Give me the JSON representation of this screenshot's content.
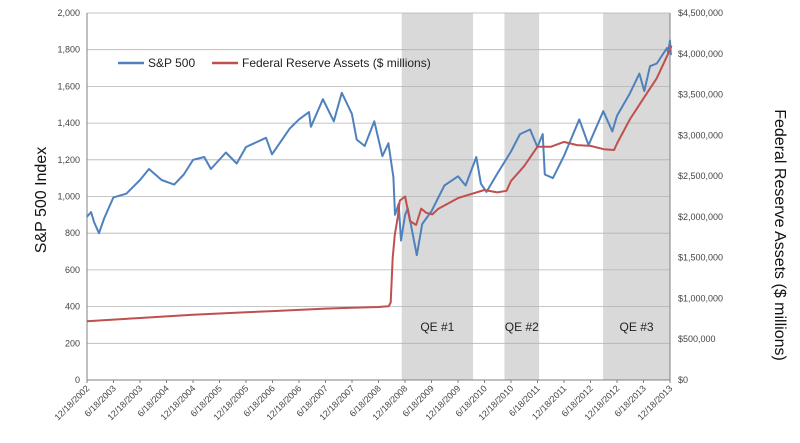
{
  "chart_data": {
    "type": "line",
    "yaxis_left": {
      "label": "S&P 500 Index",
      "range": [
        0,
        2000
      ],
      "ticks": [
        "0",
        "200",
        "400",
        "600",
        "800",
        "1,000",
        "1,200",
        "1,400",
        "1,600",
        "1,800",
        "2,000"
      ]
    },
    "yaxis_right": {
      "label": "Federal Reserve Assets ($ millions)",
      "range": [
        0,
        4500000
      ],
      "ticks": [
        "$0",
        "$500,000",
        "$1,000,000",
        "$1,500,000",
        "$2,000,000",
        "$2,500,000",
        "$3,000,000",
        "$3,500,000",
        "$4,000,000",
        "$4,500,000"
      ]
    },
    "xaxis": {
      "range": [
        "2002-12-18",
        "2013-12-18"
      ],
      "tick_labels": [
        "12/18/2002",
        "6/18/2003",
        "12/18/2003",
        "6/18/2004",
        "12/18/2004",
        "6/18/2005",
        "12/18/2005",
        "6/18/2006",
        "12/18/2006",
        "6/18/2007",
        "12/18/2007",
        "6/18/2008",
        "12/18/2008",
        "6/18/2009",
        "12/18/2009",
        "6/18/2010",
        "12/18/2010",
        "6/18/2011",
        "12/18/2011",
        "6/18/2012",
        "12/18/2012",
        "6/18/2013",
        "12/18/2013"
      ]
    },
    "grid": true,
    "legend_position": "top-left",
    "shaded_periods": [
      {
        "label": "QE #1",
        "start": "2008-11-25",
        "end": "2010-03-31"
      },
      {
        "label": "QE #2",
        "start": "2010-11-03",
        "end": "2011-06-30"
      },
      {
        "label": "QE #3",
        "start": "2012-09-13",
        "end": "2013-12-31"
      }
    ],
    "series": [
      {
        "name": "S&P 500",
        "color": "#4F81BD",
        "axis": "left",
        "points": [
          [
            "2002-12-18",
            890
          ],
          [
            "2003-01-15",
            915
          ],
          [
            "2003-02-05",
            860
          ],
          [
            "2003-03-11",
            800
          ],
          [
            "2003-04-15",
            880
          ],
          [
            "2003-06-18",
            995
          ],
          [
            "2003-09-15",
            1015
          ],
          [
            "2003-12-18",
            1090
          ],
          [
            "2004-02-18",
            1150
          ],
          [
            "2004-05-15",
            1090
          ],
          [
            "2004-08-10",
            1065
          ],
          [
            "2004-10-15",
            1120
          ],
          [
            "2004-12-18",
            1200
          ],
          [
            "2005-03-05",
            1215
          ],
          [
            "2005-04-20",
            1150
          ],
          [
            "2005-08-01",
            1240
          ],
          [
            "2005-10-15",
            1180
          ],
          [
            "2005-12-18",
            1270
          ],
          [
            "2006-05-05",
            1320
          ],
          [
            "2006-06-15",
            1230
          ],
          [
            "2006-10-15",
            1370
          ],
          [
            "2006-12-18",
            1420
          ],
          [
            "2007-02-25",
            1460
          ],
          [
            "2007-03-10",
            1380
          ],
          [
            "2007-06-01",
            1530
          ],
          [
            "2007-08-15",
            1410
          ],
          [
            "2007-10-09",
            1565
          ],
          [
            "2007-12-18",
            1450
          ],
          [
            "2008-01-20",
            1310
          ],
          [
            "2008-03-15",
            1275
          ],
          [
            "2008-05-20",
            1410
          ],
          [
            "2008-07-15",
            1220
          ],
          [
            "2008-08-25",
            1290
          ],
          [
            "2008-09-29",
            1105
          ],
          [
            "2008-10-10",
            900
          ],
          [
            "2008-11-04",
            960
          ],
          [
            "2008-11-20",
            760
          ],
          [
            "2008-12-18",
            900
          ],
          [
            "2009-01-06",
            935
          ],
          [
            "2009-03-09",
            680
          ],
          [
            "2009-04-15",
            850
          ],
          [
            "2009-06-18",
            920
          ],
          [
            "2009-09-15",
            1060
          ],
          [
            "2009-12-18",
            1110
          ],
          [
            "2010-02-08",
            1060
          ],
          [
            "2010-04-23",
            1215
          ],
          [
            "2010-05-25",
            1070
          ],
          [
            "2010-07-02",
            1025
          ],
          [
            "2010-09-15",
            1125
          ],
          [
            "2010-12-18",
            1245
          ],
          [
            "2011-02-18",
            1340
          ],
          [
            "2011-04-29",
            1365
          ],
          [
            "2011-06-18",
            1270
          ],
          [
            "2011-07-25",
            1340
          ],
          [
            "2011-08-08",
            1120
          ],
          [
            "2011-10-03",
            1100
          ],
          [
            "2011-12-18",
            1220
          ],
          [
            "2012-04-02",
            1420
          ],
          [
            "2012-06-04",
            1280
          ],
          [
            "2012-09-14",
            1465
          ],
          [
            "2012-11-15",
            1355
          ],
          [
            "2012-12-18",
            1440
          ],
          [
            "2013-03-15",
            1560
          ],
          [
            "2013-05-21",
            1670
          ],
          [
            "2013-06-24",
            1575
          ],
          [
            "2013-08-02",
            1710
          ],
          [
            "2013-09-18",
            1725
          ],
          [
            "2013-11-27",
            1810
          ],
          [
            "2013-12-05",
            1785
          ],
          [
            "2013-12-18",
            1850
          ],
          [
            "2013-12-24",
            1770
          ]
        ]
      },
      {
        "name": "Federal Reserve Assets ($ millions)",
        "color": "#C0504D",
        "axis": "right",
        "points": [
          [
            "2002-12-18",
            720000
          ],
          [
            "2003-06-18",
            740000
          ],
          [
            "2003-12-18",
            760000
          ],
          [
            "2004-06-18",
            780000
          ],
          [
            "2004-12-18",
            800000
          ],
          [
            "2005-06-18",
            815000
          ],
          [
            "2005-12-18",
            830000
          ],
          [
            "2006-06-18",
            845000
          ],
          [
            "2006-12-18",
            860000
          ],
          [
            "2007-06-18",
            875000
          ],
          [
            "2007-12-18",
            885000
          ],
          [
            "2008-06-18",
            895000
          ],
          [
            "2008-08-27",
            905000
          ],
          [
            "2008-09-10",
            950000
          ],
          [
            "2008-09-24",
            1500000
          ],
          [
            "2008-10-08",
            1780000
          ],
          [
            "2008-10-29",
            2000000
          ],
          [
            "2008-11-12",
            2200000
          ],
          [
            "2008-12-18",
            2250000
          ],
          [
            "2009-01-21",
            1950000
          ],
          [
            "2009-03-04",
            1900000
          ],
          [
            "2009-04-08",
            2100000
          ],
          [
            "2009-05-13",
            2050000
          ],
          [
            "2009-06-24",
            2030000
          ],
          [
            "2009-08-05",
            2100000
          ],
          [
            "2009-12-18",
            2230000
          ],
          [
            "2010-06-18",
            2330000
          ],
          [
            "2010-09-15",
            2300000
          ],
          [
            "2010-11-17",
            2320000
          ],
          [
            "2010-12-18",
            2440000
          ],
          [
            "2011-03-18",
            2620000
          ],
          [
            "2011-06-18",
            2860000
          ],
          [
            "2011-09-18",
            2860000
          ],
          [
            "2011-12-18",
            2920000
          ],
          [
            "2012-03-18",
            2880000
          ],
          [
            "2012-06-18",
            2870000
          ],
          [
            "2012-09-18",
            2830000
          ],
          [
            "2012-11-28",
            2820000
          ],
          [
            "2012-12-18",
            2900000
          ],
          [
            "2013-03-18",
            3200000
          ],
          [
            "2013-06-18",
            3450000
          ],
          [
            "2013-09-18",
            3700000
          ],
          [
            "2013-12-18",
            4050000
          ],
          [
            "2013-12-28",
            4100000
          ]
        ]
      }
    ]
  }
}
